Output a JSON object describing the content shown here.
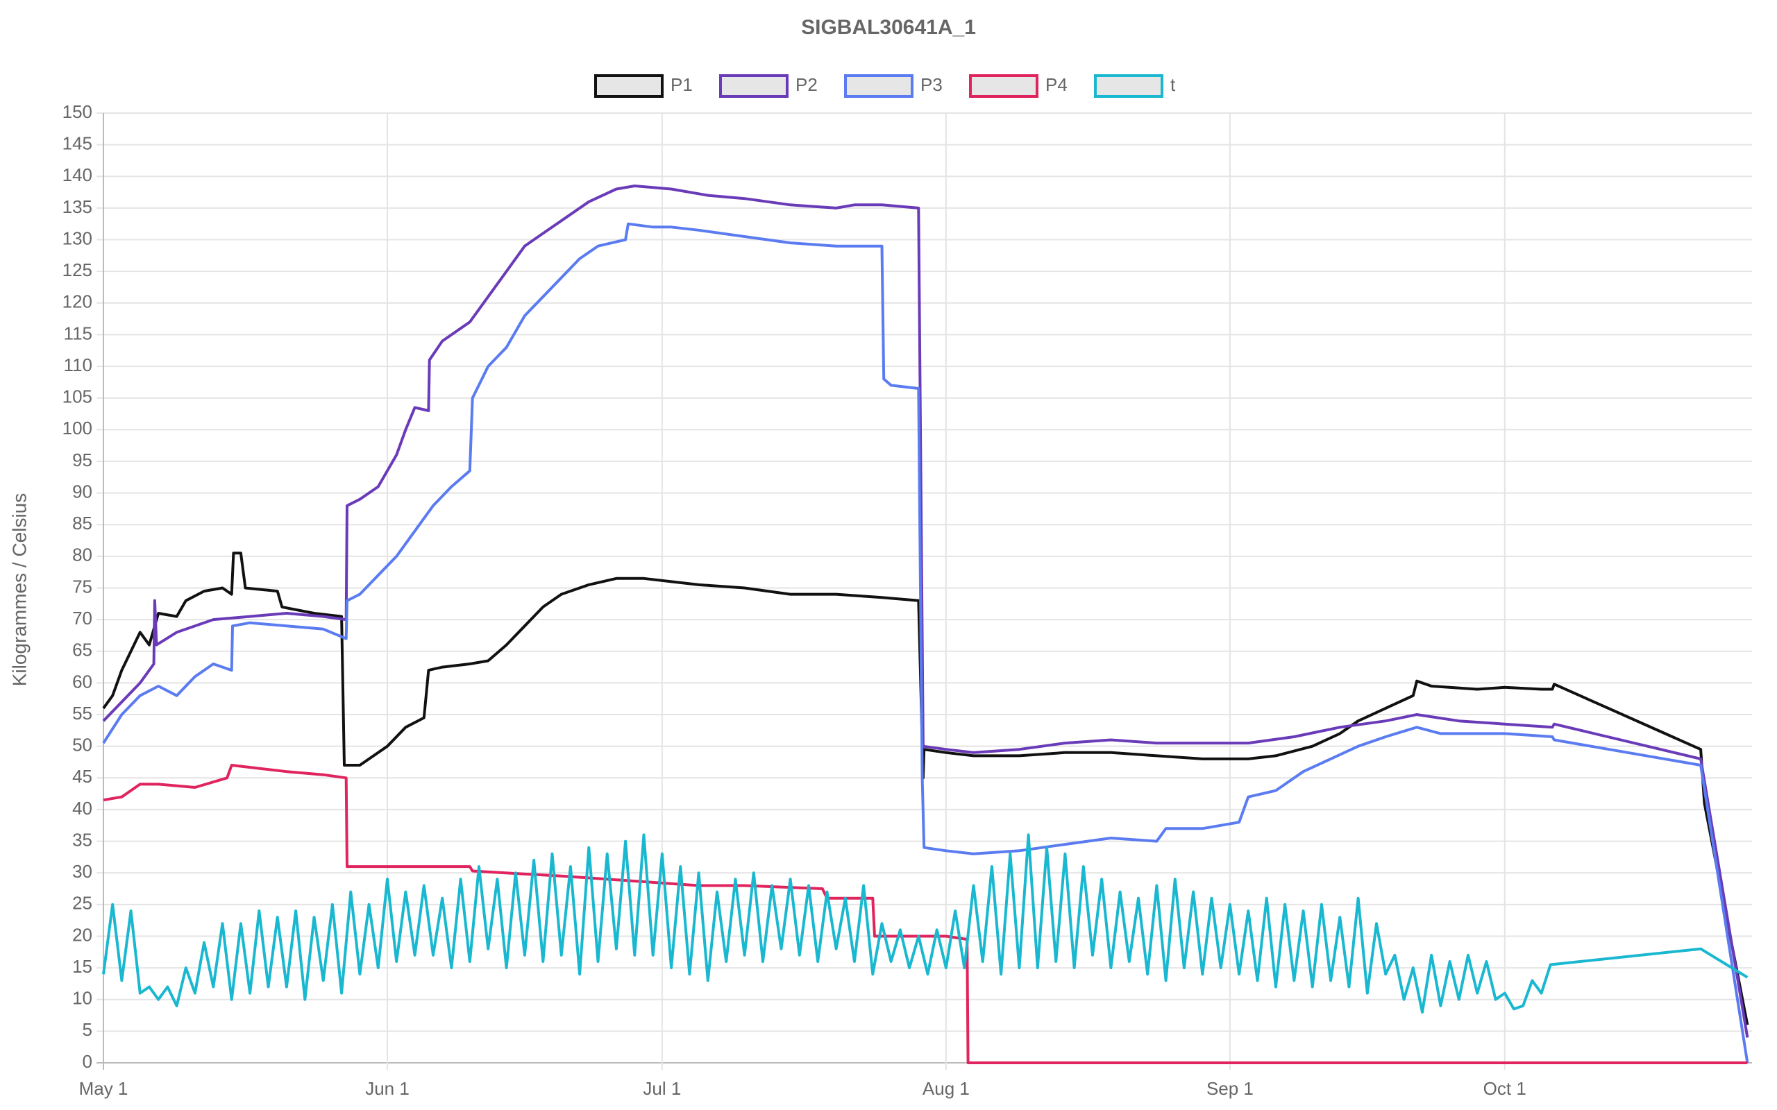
{
  "chart_data": {
    "type": "line",
    "title": "SIGBAL30641A_1",
    "ylabel": "Kilogrammes  / Celsius",
    "xlim": [
      0,
      180
    ],
    "ylim": [
      0,
      150
    ],
    "xticks": [
      {
        "value": 0,
        "label": "May 1"
      },
      {
        "value": 31,
        "label": "Jun 1"
      },
      {
        "value": 61,
        "label": "Jul 1"
      },
      {
        "value": 92,
        "label": "Aug 1"
      },
      {
        "value": 123,
        "label": "Sep 1"
      },
      {
        "value": 153,
        "label": "Oct 1"
      }
    ],
    "yticks": [
      0,
      5,
      10,
      15,
      20,
      25,
      30,
      35,
      40,
      45,
      50,
      55,
      60,
      65,
      70,
      75,
      80,
      85,
      90,
      95,
      100,
      105,
      110,
      115,
      120,
      125,
      130,
      135,
      140,
      145,
      150
    ],
    "grid": true,
    "legend": "top",
    "series": [
      {
        "name": "P1",
        "color": "#111111",
        "x": [
          0,
          1,
          2,
          3,
          4,
          5,
          6,
          8,
          9,
          11,
          13,
          14,
          14.2,
          15,
          15.5,
          19,
          19.5,
          23,
          26,
          26.3,
          28,
          31,
          33,
          35,
          35.5,
          37,
          40,
          42,
          44,
          46,
          48,
          50,
          53,
          56,
          59,
          62,
          65,
          70,
          75,
          80,
          85,
          89,
          89.5,
          89.6,
          92,
          95,
          100,
          105,
          110,
          115,
          120,
          125,
          128,
          132,
          135,
          137,
          140,
          143,
          143.4,
          145,
          150,
          153,
          157,
          158.2,
          158.4,
          174.4,
          174.8,
          179.5
        ],
        "values": [
          56,
          58,
          62,
          65,
          68,
          66,
          71,
          70.5,
          73,
          74.5,
          75,
          74,
          80.5,
          80.5,
          75,
          74.5,
          72,
          71,
          70.5,
          47,
          47,
          50,
          53,
          54.5,
          62,
          62.5,
          63,
          63.5,
          66,
          69,
          72,
          74,
          75.5,
          76.5,
          76.5,
          76,
          75.5,
          75,
          74,
          74,
          73.5,
          73,
          45,
          49.5,
          49,
          48.5,
          48.5,
          49,
          49,
          48.5,
          48,
          48,
          48.5,
          50,
          52,
          54,
          56,
          58,
          60.3,
          59.5,
          59,
          59.3,
          59,
          59,
          59.8,
          49.5,
          41,
          6
        ]
      },
      {
        "name": "P2",
        "color": "#6a3bb8",
        "x": [
          0,
          2,
          4,
          5.5,
          5.6,
          5.8,
          8,
          12,
          16,
          20,
          24,
          26.5,
          26.6,
          28,
          30,
          32,
          33,
          34,
          35.5,
          35.6,
          37,
          40,
          42,
          44,
          46,
          48,
          50,
          53,
          56,
          58,
          62,
          66,
          70,
          75,
          80,
          82,
          85,
          89,
          89.5,
          92,
          95,
          100,
          105,
          110,
          115,
          120,
          125,
          130,
          135,
          140,
          143.4,
          148,
          153,
          158.2,
          158.4,
          174.4,
          179.5
        ],
        "values": [
          54,
          57,
          60,
          63,
          73,
          66,
          68,
          70,
          70.5,
          71,
          70.5,
          70,
          88,
          89,
          91,
          96,
          100,
          103.5,
          103,
          111,
          114,
          117,
          121,
          125,
          129,
          131,
          133,
          136,
          138,
          138.5,
          138,
          137,
          136.5,
          135.5,
          135,
          135.5,
          135.5,
          135,
          50,
          49.5,
          49,
          49.5,
          50.5,
          51,
          50.5,
          50.5,
          50.5,
          51.5,
          53,
          54,
          55,
          54,
          53.5,
          53,
          53.5,
          48,
          4
        ]
      },
      {
        "name": "P3",
        "color": "#5b7cf0",
        "x": [
          0,
          2,
          4,
          6,
          8,
          10,
          12,
          14,
          14.1,
          16,
          20,
          24,
          26.5,
          26.6,
          28,
          30,
          32,
          34,
          36,
          38,
          40,
          40.3,
          42,
          44,
          46,
          48,
          50,
          52,
          54,
          57,
          57.3,
          60,
          62,
          65,
          70,
          75,
          80,
          85,
          85.2,
          86,
          89,
          89.4,
          89.6,
          92,
          95,
          100,
          105,
          110,
          115,
          116,
          120,
          124,
          125,
          128,
          131,
          134,
          137,
          140,
          143.4,
          146,
          150,
          153,
          158.2,
          158.4,
          174.4,
          179.5
        ],
        "values": [
          50.5,
          55,
          58,
          59.5,
          58,
          61,
          63,
          62,
          69,
          69.5,
          69,
          68.5,
          67,
          73,
          74,
          77,
          80,
          84,
          88,
          91,
          93.5,
          105,
          110,
          113,
          118,
          121,
          124,
          127,
          129,
          130,
          132.5,
          132,
          132,
          131.5,
          130.5,
          129.5,
          129,
          129,
          108,
          107,
          106.5,
          45,
          34,
          33.5,
          33,
          33.5,
          34.5,
          35.5,
          35,
          37,
          37,
          38,
          42,
          43,
          46,
          48,
          50,
          51.5,
          53,
          52,
          52,
          52,
          51.5,
          51,
          47,
          0
        ]
      },
      {
        "name": "P4",
        "color": "#e0245e",
        "x": [
          0,
          2,
          4,
          6,
          10,
          13.5,
          14,
          17,
          20,
          24,
          26.5,
          26.6,
          31,
          35,
          40,
          40.3,
          50,
          55,
          60,
          65,
          70,
          78.5,
          79,
          84,
          84.2,
          92,
          94.3,
          94.4,
          179.5
        ],
        "values": [
          41.5,
          42,
          44,
          44,
          43.5,
          45,
          47,
          46.5,
          46,
          45.5,
          45,
          31,
          31,
          31,
          31,
          30.3,
          29.5,
          29,
          28.5,
          28,
          28,
          27.5,
          26,
          26,
          20,
          20,
          19.5,
          0,
          0
        ]
      },
      {
        "name": "t",
        "color": "#1ab8d0",
        "x": [
          0,
          1,
          2,
          3,
          4,
          5,
          6,
          7,
          8,
          9,
          10,
          11,
          12,
          13,
          14,
          15,
          16,
          17,
          18,
          19,
          20,
          21,
          22,
          23,
          24,
          25,
          26,
          27,
          28,
          29,
          30,
          31,
          32,
          33,
          34,
          35,
          36,
          37,
          38,
          39,
          40,
          41,
          42,
          43,
          44,
          45,
          46,
          47,
          48,
          49,
          50,
          51,
          52,
          53,
          54,
          55,
          56,
          57,
          58,
          59,
          60,
          61,
          62,
          63,
          64,
          65,
          66,
          67,
          68,
          69,
          70,
          71,
          72,
          73,
          74,
          75,
          76,
          77,
          78,
          79,
          80,
          81,
          82,
          83,
          84,
          85,
          86,
          87,
          88,
          89,
          90,
          91,
          92,
          93,
          94,
          95,
          96,
          97,
          98,
          99,
          100,
          101,
          102,
          103,
          104,
          105,
          106,
          107,
          108,
          109,
          110,
          111,
          112,
          113,
          114,
          115,
          116,
          117,
          118,
          119,
          120,
          121,
          122,
          123,
          124,
          125,
          126,
          127,
          128,
          129,
          130,
          131,
          132,
          133,
          134,
          135,
          136,
          137,
          138,
          139,
          140,
          141,
          142,
          143,
          144,
          145,
          146,
          147,
          148,
          149,
          150,
          151,
          152,
          153,
          154,
          155,
          156,
          157,
          158,
          174.4,
          179.5
        ],
        "values": [
          14,
          25,
          13,
          24,
          11,
          12,
          10,
          12,
          9,
          15,
          11,
          19,
          12,
          22,
          10,
          22,
          11,
          24,
          12,
          23,
          12,
          24,
          10,
          23,
          13,
          25,
          11,
          27,
          14,
          25,
          15,
          29,
          16,
          27,
          17,
          28,
          17,
          26,
          15,
          29,
          16,
          31,
          18,
          29,
          15,
          30,
          17,
          32,
          16,
          33,
          17,
          31,
          14,
          34,
          16,
          33,
          18,
          35,
          17,
          36,
          17,
          33,
          15,
          31,
          14,
          30,
          13,
          27,
          16,
          29,
          17,
          30,
          16,
          28,
          18,
          29,
          17,
          28,
          16,
          27,
          18,
          26,
          16,
          28,
          14,
          22,
          16,
          21,
          15,
          20,
          14,
          21,
          15,
          24,
          15,
          28,
          16,
          31,
          14,
          33,
          15,
          36,
          15,
          34,
          16,
          33,
          15,
          31,
          17,
          29,
          15,
          27,
          16,
          26,
          14,
          28,
          13,
          29,
          15,
          27,
          14,
          26,
          15,
          25,
          14,
          24,
          13,
          26,
          12,
          25,
          13,
          24,
          12,
          25,
          13,
          23,
          12,
          26,
          11,
          22,
          14,
          17,
          10,
          15,
          8,
          17,
          9,
          16,
          10,
          17,
          11,
          16,
          10,
          11,
          8.5,
          9,
          13,
          11,
          15.5,
          18,
          13.5
        ]
      }
    ]
  }
}
